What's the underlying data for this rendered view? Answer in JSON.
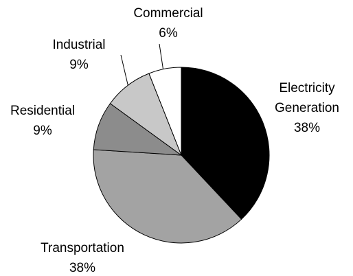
{
  "chart_data": {
    "type": "pie",
    "categories": [
      "Electricity Generation",
      "Transportation",
      "Residential",
      "Industrial",
      "Commercial"
    ],
    "values": [
      38,
      38,
      9,
      9,
      6
    ],
    "value_labels": [
      "38%",
      "38%",
      "9%",
      "9%",
      "6%"
    ],
    "colors": [
      "#000000",
      "#a3a3a3",
      "#8c8c8c",
      "#c8c8c8",
      "#ffffff"
    ]
  }
}
